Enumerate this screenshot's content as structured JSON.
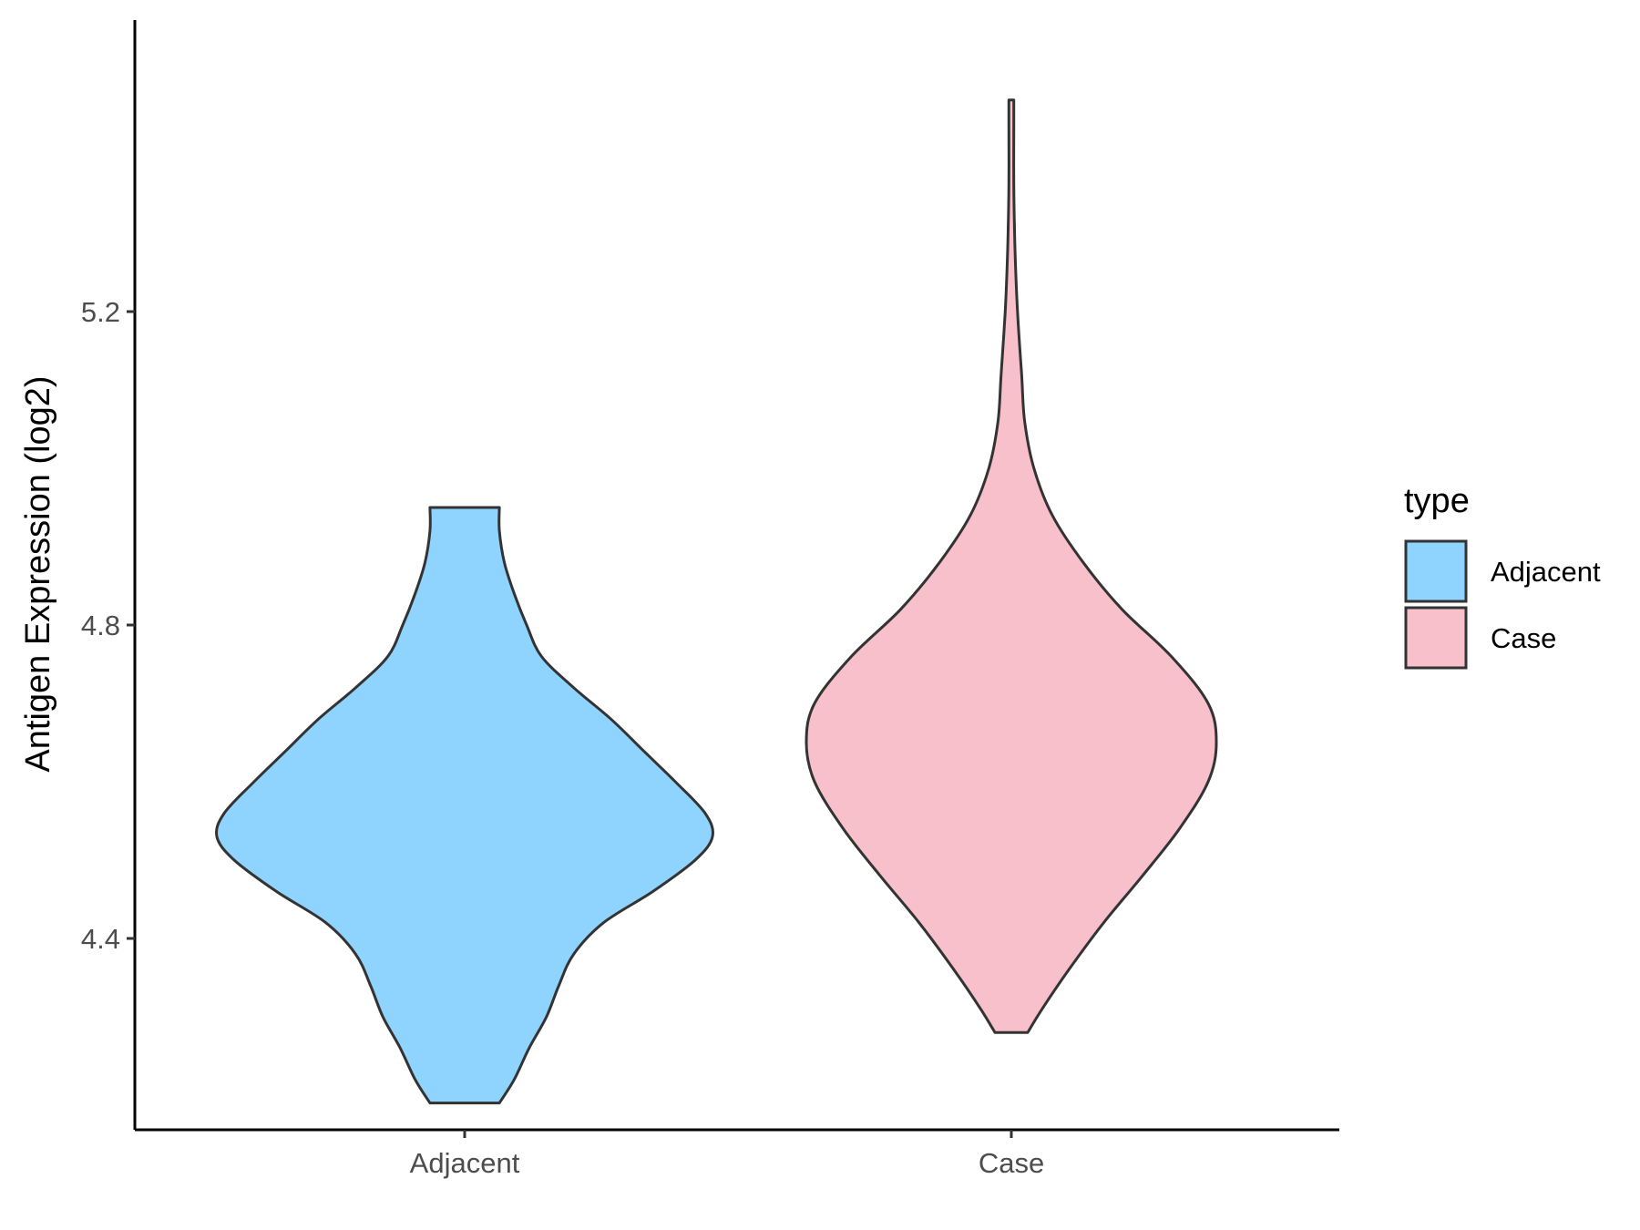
{
  "chart_data": {
    "type": "violin",
    "title": "",
    "xlabel": "",
    "ylabel": "Antigen Expression (log2)",
    "ylim": [
      4.13,
      5.55
    ],
    "yticks": [
      4.4,
      4.8,
      5.2
    ],
    "ytick_labels": [
      "4.4",
      "4.8",
      "5.2"
    ],
    "categories": [
      "Adjacent",
      "Case"
    ],
    "colors": {
      "Adjacent": "#8FD3FF",
      "Case": "#F7C0CB",
      "outline": "#333333"
    },
    "legend": {
      "title": "type",
      "entries": [
        "Adjacent",
        "Case"
      ],
      "position": "right"
    },
    "grid": false,
    "series": [
      {
        "name": "Adjacent",
        "min": 4.19,
        "max": 4.95,
        "density": [
          [
            4.19,
            0.14
          ],
          [
            4.22,
            0.2
          ],
          [
            4.26,
            0.26
          ],
          [
            4.3,
            0.33
          ],
          [
            4.34,
            0.38
          ],
          [
            4.38,
            0.44
          ],
          [
            4.42,
            0.56
          ],
          [
            4.46,
            0.76
          ],
          [
            4.5,
            0.93
          ],
          [
            4.53,
            1.0
          ],
          [
            4.56,
            0.97
          ],
          [
            4.6,
            0.85
          ],
          [
            4.64,
            0.72
          ],
          [
            4.68,
            0.59
          ],
          [
            4.72,
            0.44
          ],
          [
            4.76,
            0.31
          ],
          [
            4.8,
            0.25
          ],
          [
            4.84,
            0.2
          ],
          [
            4.88,
            0.16
          ],
          [
            4.92,
            0.14
          ],
          [
            4.95,
            0.14
          ]
        ]
      },
      {
        "name": "Case",
        "min": 4.28,
        "max": 5.47,
        "density": [
          [
            4.28,
            0.08
          ],
          [
            4.31,
            0.15
          ],
          [
            4.36,
            0.28
          ],
          [
            4.42,
            0.45
          ],
          [
            4.48,
            0.64
          ],
          [
            4.54,
            0.82
          ],
          [
            4.6,
            0.96
          ],
          [
            4.65,
            1.0
          ],
          [
            4.7,
            0.96
          ],
          [
            4.76,
            0.78
          ],
          [
            4.82,
            0.54
          ],
          [
            4.88,
            0.35
          ],
          [
            4.94,
            0.2
          ],
          [
            5.0,
            0.11
          ],
          [
            5.06,
            0.065
          ],
          [
            5.12,
            0.05
          ],
          [
            5.2,
            0.03
          ],
          [
            5.28,
            0.018
          ],
          [
            5.36,
            0.012
          ],
          [
            5.44,
            0.012
          ],
          [
            5.47,
            0.012
          ]
        ]
      }
    ]
  }
}
